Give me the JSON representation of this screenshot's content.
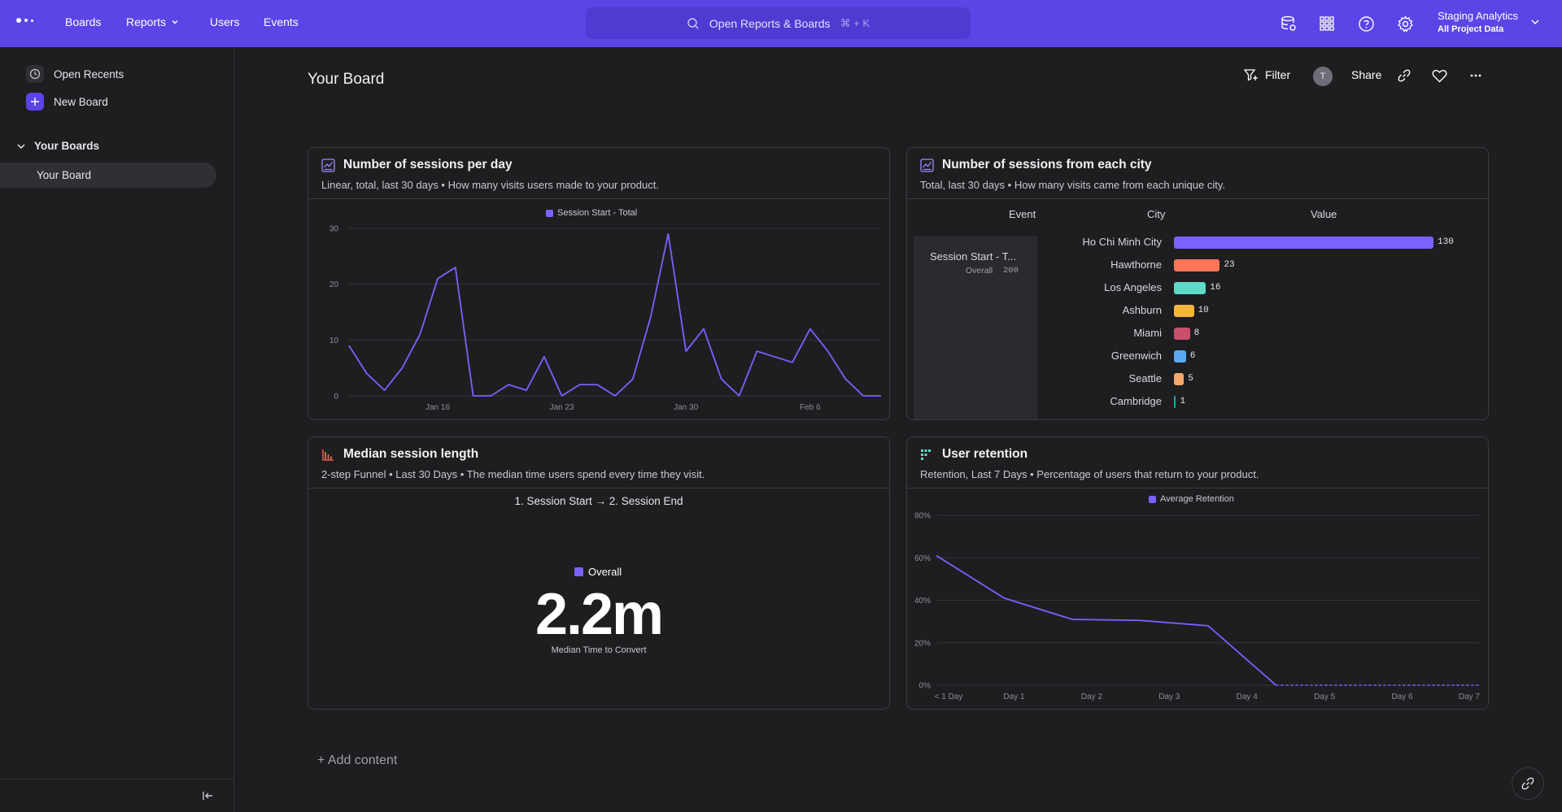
{
  "topbar": {
    "nav": [
      "Boards",
      "Reports",
      "Users",
      "Events"
    ],
    "search_label": "Open Reports & Boards",
    "search_shortcut": "⌘ + K",
    "project_name": "Staging Analytics",
    "project_scope": "All Project Data",
    "colors": {
      "accent": "#5b45e6"
    }
  },
  "sidebar": {
    "open_recents": "Open Recents",
    "new_board": "New Board",
    "section": "Your Boards",
    "board_item": "Your Board"
  },
  "board": {
    "title": "Your Board",
    "filter_label": "Filter",
    "avatar_initial": "T",
    "share_label": "Share",
    "add_content": "+ Add content"
  },
  "cards": {
    "sessions": {
      "title": "Number of sessions per day",
      "subtitle": "Linear, total, last 30 days • How many visits users made to your product.",
      "legend": "Session Start - Total"
    },
    "city": {
      "title": "Number of sessions from each city",
      "subtitle": "Total, last 30 days • How many visits came from each unique city.",
      "col_event": "Event",
      "col_city": "City",
      "col_value": "Value",
      "event_name": "Session Start - T...",
      "event_scope": "Overall",
      "event_total": "200"
    },
    "median": {
      "title": "Median session length",
      "subtitle": "2-step Funnel • Last 30 Days • The median time users spend every time they visit.",
      "step": "1. Session Start → 2. Session End",
      "legend": "Overall",
      "value": "2.2m",
      "caption": "Median Time to Convert"
    },
    "retention": {
      "title": "User retention",
      "subtitle": "Retention, Last 7 Days • Percentage of users that return to your product.",
      "legend": "Average Retention"
    }
  },
  "chart_data": [
    {
      "type": "line",
      "title": "Number of sessions per day",
      "series": [
        {
          "name": "Session Start - Total",
          "color": "#7b61ff",
          "values": [
            9,
            4,
            1,
            5,
            11,
            21,
            23,
            0,
            0,
            2,
            1,
            7,
            0,
            2,
            2,
            0,
            3,
            14,
            29,
            8,
            12,
            3,
            0,
            8,
            7,
            6,
            12,
            8,
            3,
            0,
            0
          ]
        }
      ],
      "x": [
        "Jan 11",
        "Jan 12",
        "Jan 13",
        "Jan 14",
        "Jan 15",
        "Jan 16",
        "Jan 17",
        "Jan 18",
        "Jan 19",
        "Jan 20",
        "Jan 21",
        "Jan 22",
        "Jan 23",
        "Jan 24",
        "Jan 25",
        "Jan 26",
        "Jan 27",
        "Jan 28",
        "Jan 29",
        "Jan 30",
        "Jan 31",
        "Feb 1",
        "Feb 2",
        "Feb 3",
        "Feb 4",
        "Feb 5",
        "Feb 6",
        "Feb 7",
        "Feb 8",
        "Feb 9",
        "Feb 10"
      ],
      "x_ticks": [
        "Jan 16",
        "Jan 23",
        "Jan 30",
        "Feb 6"
      ],
      "y_ticks": [
        0,
        10,
        20,
        30
      ],
      "ylim": [
        0,
        30
      ],
      "grid": true
    },
    {
      "type": "bar",
      "orientation": "horizontal",
      "title": "Number of sessions from each city",
      "categories": [
        "Ho Chi Minh City",
        "Hawthorne",
        "Los Angeles",
        "Ashburn",
        "Miami",
        "Greenwich",
        "Seattle",
        "Cambridge"
      ],
      "values": [
        130,
        23,
        16,
        10,
        8,
        6,
        5,
        1
      ],
      "colors": [
        "#7b61ff",
        "#ff7557",
        "#5fd9c9",
        "#f6b43c",
        "#c94f6d",
        "#5ca8f0",
        "#f7a96b",
        "#2aa198"
      ]
    },
    {
      "type": "line",
      "title": "User retention",
      "series": [
        {
          "name": "Average Retention",
          "color": "#7b61ff",
          "values": [
            61,
            41,
            31,
            30.5,
            28,
            0,
            0,
            0,
            0
          ]
        }
      ],
      "x": [
        "< 1 Day",
        "Day 1",
        "Day 2",
        "Day 3",
        "Day 4",
        "Day 5",
        "Day 6",
        "Day 7",
        "Day 7"
      ],
      "x_ticks": [
        "< 1 Day",
        "Day 1",
        "Day 2",
        "Day 3",
        "Day 4",
        "Day 5",
        "Day 6",
        "Day 7"
      ],
      "y_ticks": [
        "0%",
        "20%",
        "40%",
        "60%",
        "80%"
      ],
      "ylim": [
        0,
        80
      ],
      "dashed_from_index": 5,
      "grid": true
    }
  ]
}
